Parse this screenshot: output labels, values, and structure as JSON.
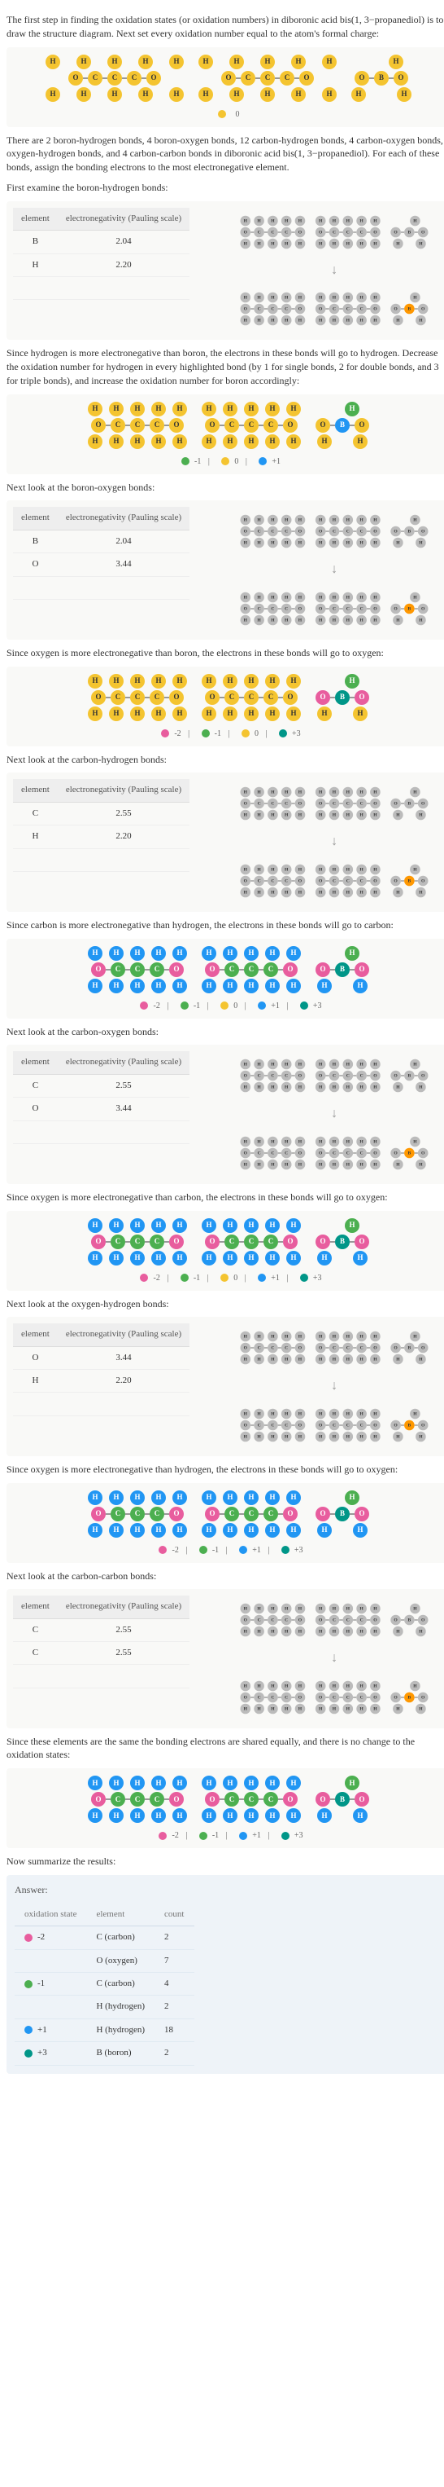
{
  "intro": "The first step in finding the oxidation states (or oxidation numbers) in diboronic acid bis(1, 3−propanediol) is to draw the structure diagram. Next set every oxidation number equal to the atom's formal charge:",
  "legend0": {
    "val": "0",
    "color": "#f4c430"
  },
  "paraBonds": "There are 2 boron-hydrogen bonds, 4 boron-oxygen bonds, 12 carbon-hydrogen bonds, 4 carbon-oxygen bonds, 6 oxygen-hydrogen bonds, and 4 carbon-carbon bonds in diboronic acid bis(1, 3−propanediol).  For each of these bonds, assign the bonding electrons to the most electronegative element.",
  "sections": [
    {
      "heading": "First examine the boron-hydrogen bonds:",
      "rows": [
        [
          "B",
          "2.04"
        ],
        [
          "H",
          "2.20"
        ]
      ],
      "expl": "Since hydrogen is more electronegative than boron, the electrons in these bonds will go to hydrogen. Decrease the oxidation number for hydrogen in every highlighted bond (by 1 for single bonds, 2 for double bonds, and 3 for triple bonds), and increase the oxidation number for boron accordingly:",
      "legend": [
        [
          "-1",
          "#4caf50"
        ],
        [
          "0",
          "#f4c430"
        ],
        [
          "+1",
          "#2196f3"
        ]
      ]
    },
    {
      "heading": "Next look at the boron-oxygen bonds:",
      "rows": [
        [
          "B",
          "2.04"
        ],
        [
          "O",
          "3.44"
        ]
      ],
      "expl": "Since oxygen is more electronegative than boron, the electrons in these bonds will go to oxygen:",
      "legend": [
        [
          "-2",
          "#e85d9e"
        ],
        [
          "-1",
          "#4caf50"
        ],
        [
          "0",
          "#f4c430"
        ],
        [
          "+3",
          "#009688"
        ]
      ]
    },
    {
      "heading": "Next look at the carbon-hydrogen bonds:",
      "rows": [
        [
          "C",
          "2.55"
        ],
        [
          "H",
          "2.20"
        ]
      ],
      "expl": "Since carbon is more electronegative than hydrogen, the electrons in these bonds will go to carbon:",
      "legend": [
        [
          "-2",
          "#e85d9e"
        ],
        [
          "-1",
          "#4caf50"
        ],
        [
          "0",
          "#f4c430"
        ],
        [
          "+1",
          "#2196f3"
        ],
        [
          "+3",
          "#009688"
        ]
      ]
    },
    {
      "heading": "Next look at the carbon-oxygen bonds:",
      "rows": [
        [
          "C",
          "2.55"
        ],
        [
          "O",
          "3.44"
        ]
      ],
      "expl": "Since oxygen is more electronegative than carbon, the electrons in these bonds will go to oxygen:",
      "legend": [
        [
          "-2",
          "#e85d9e"
        ],
        [
          "-1",
          "#4caf50"
        ],
        [
          "0",
          "#f4c430"
        ],
        [
          "+1",
          "#2196f3"
        ],
        [
          "+3",
          "#009688"
        ]
      ]
    },
    {
      "heading": "Next look at the oxygen-hydrogen bonds:",
      "rows": [
        [
          "O",
          "3.44"
        ],
        [
          "H",
          "2.20"
        ]
      ],
      "expl": "Since oxygen is more electronegative than hydrogen, the electrons in these bonds will go to oxygen:",
      "legend": [
        [
          "-2",
          "#e85d9e"
        ],
        [
          "-1",
          "#4caf50"
        ],
        [
          "+1",
          "#2196f3"
        ],
        [
          "+3",
          "#009688"
        ]
      ]
    },
    {
      "heading": "Next look at the carbon-carbon bonds:",
      "rows": [
        [
          "C",
          "2.55"
        ],
        [
          "C",
          "2.55"
        ]
      ],
      "expl": "Since these elements are the same the bonding electrons are shared equally, and there is no change to the oxidation states:",
      "legend": [
        [
          "-2",
          "#e85d9e"
        ],
        [
          "-1",
          "#4caf50"
        ],
        [
          "+1",
          "#2196f3"
        ],
        [
          "+3",
          "#009688"
        ]
      ]
    }
  ],
  "tableHeaders": {
    "el": "element",
    "en": "electronegativity (Pauling scale)"
  },
  "summarize": "Now summarize the results:",
  "answer": {
    "title": "Answer:",
    "headers": [
      "oxidation state",
      "element",
      "count"
    ],
    "rows": [
      {
        "os": "-2",
        "color": "#e85d9e",
        "el": "C (carbon)",
        "ct": "2"
      },
      {
        "os": "",
        "color": "",
        "el": "O (oxygen)",
        "ct": "7"
      },
      {
        "os": "-1",
        "color": "#4caf50",
        "el": "C (carbon)",
        "ct": "4"
      },
      {
        "os": "",
        "color": "",
        "el": "H (hydrogen)",
        "ct": "2"
      },
      {
        "os": "+1",
        "color": "#2196f3",
        "el": "H (hydrogen)",
        "ct": "18"
      },
      {
        "os": "+3",
        "color": "#009688",
        "el": "B (boron)",
        "ct": "2"
      }
    ]
  },
  "atoms": {
    "H": "H",
    "B": "B",
    "O": "O",
    "C": "C"
  }
}
